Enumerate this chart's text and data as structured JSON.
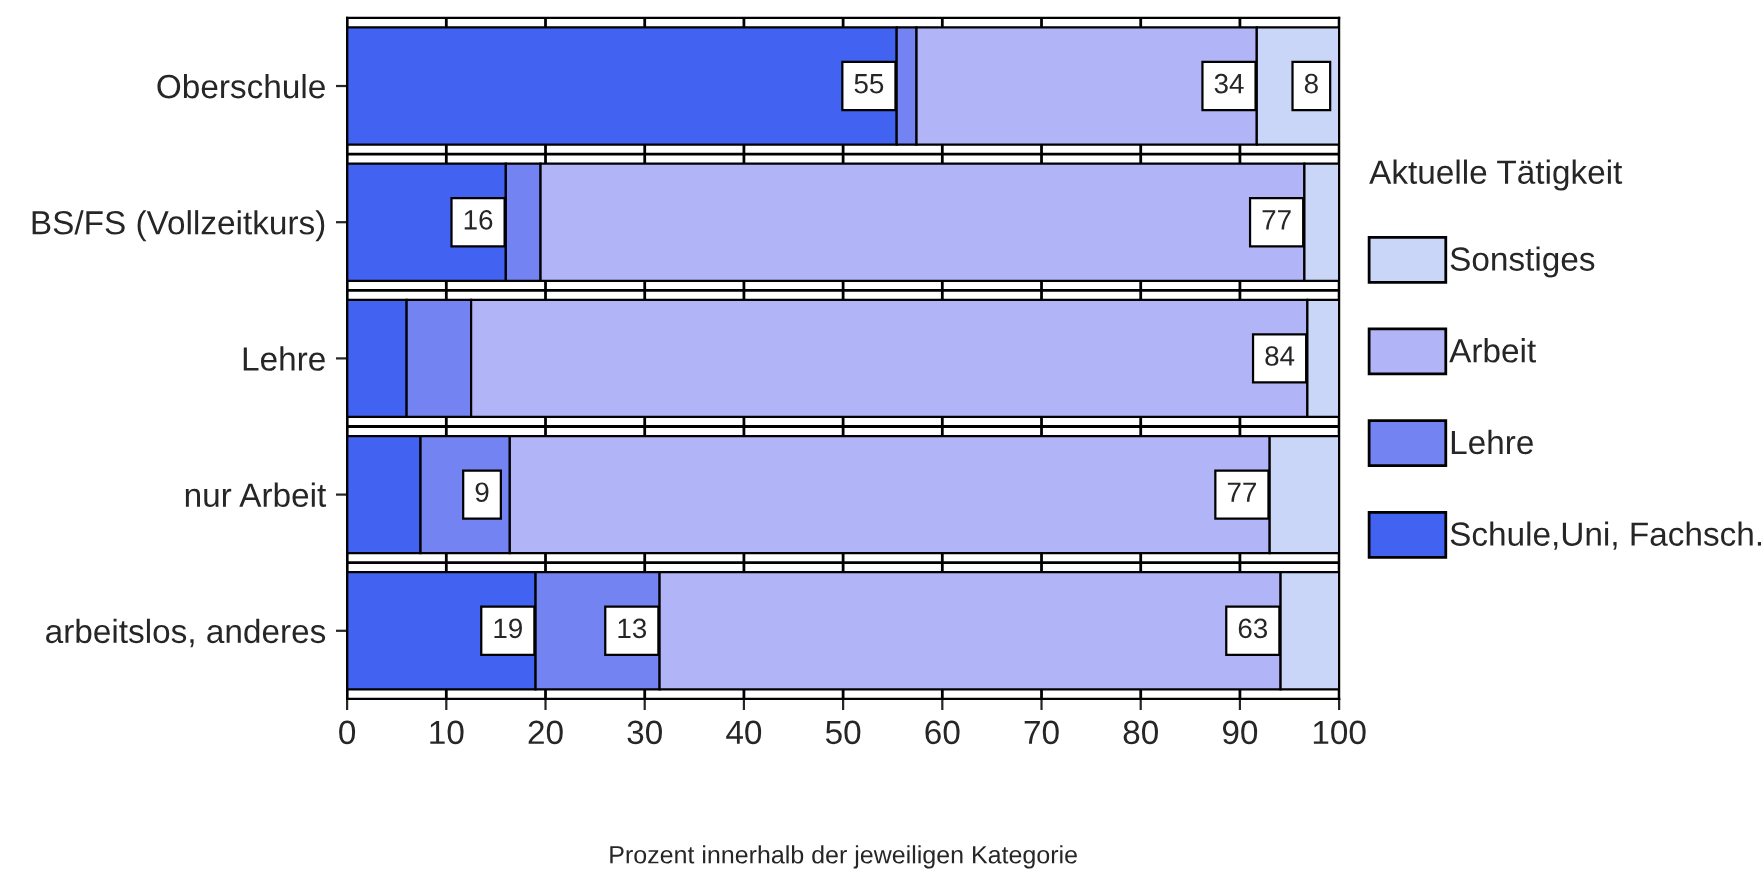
{
  "chart_data": {
    "type": "bar",
    "orientation": "horizontal",
    "stacked": true,
    "categories": [
      "Oberschule",
      "BS/FS (Vollzeitkurs)",
      "Lehre",
      "nur Arbeit",
      "arbeitslos, anderes"
    ],
    "xlabel": "Prozent innerhalb der jeweiligen Kategorie",
    "legend_title": "Aktuelle Tätigkeit",
    "xlim": [
      0,
      100
    ],
    "xticks": [
      0,
      10,
      20,
      30,
      40,
      50,
      60,
      70,
      80,
      90,
      100
    ],
    "grid": true,
    "legend": "right",
    "series": [
      {
        "name": "Schule,Uni, Fachsch.",
        "color": "#4262f2",
        "values": [
          55.4,
          16,
          6,
          7.4,
          19
        ],
        "value_labels": [
          "55",
          "16",
          null,
          null,
          "19"
        ]
      },
      {
        "name": "Lehre",
        "color": "#7383f2",
        "values": [
          2,
          3.5,
          6.5,
          9,
          12.5
        ],
        "value_labels": [
          null,
          null,
          null,
          "9",
          "13"
        ]
      },
      {
        "name": "Arbeit",
        "color": "#b1b5f7",
        "values": [
          34.3,
          77,
          84.3,
          76.6,
          62.6
        ],
        "value_labels": [
          "34",
          "77",
          "84",
          "77",
          "63"
        ]
      },
      {
        "name": "Sonstiges",
        "color": "#c9d6f7",
        "values": [
          8.3,
          3.5,
          3.2,
          7,
          5.9
        ],
        "value_labels": [
          "8",
          null,
          null,
          null,
          null
        ]
      }
    ]
  }
}
